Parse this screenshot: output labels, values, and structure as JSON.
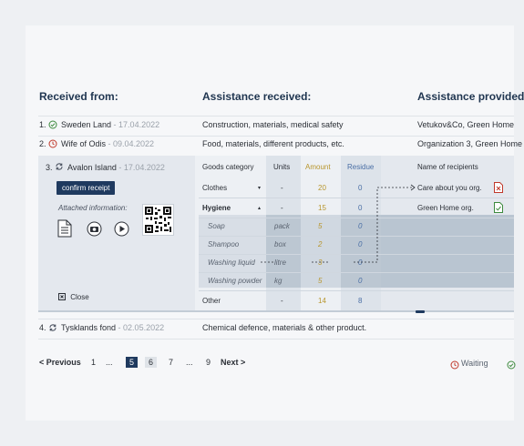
{
  "headers": {
    "received_from": "Received from:",
    "assistance_received": "Assistance received:",
    "assistance_provided": "Assistance provided"
  },
  "rows": [
    {
      "num": "1.",
      "name": "Sweden Land",
      "sep": " - ",
      "date": "17.04.2022",
      "assist": "Construction, materials, medical safety",
      "provided": "Vetukov&Co, Green Home",
      "status": "ok"
    },
    {
      "num": "2.",
      "name": "Wife of Odis",
      "sep": " - ",
      "date": "09.04.2022",
      "assist": "Food, materials, different products, etc.",
      "provided": "Organization 3, Green Home",
      "status": "waiting"
    },
    {
      "num": "3.",
      "name": "Avalon Island",
      "sep": " - ",
      "date": "17.04.2022",
      "status": "sync"
    },
    {
      "num": "4.",
      "name": "Tysklands fond",
      "sep": " - ",
      "date": "02.05.2022",
      "assist": "Chemical defence, materials & other product.",
      "status": "sync"
    }
  ],
  "expanded": {
    "confirm_label": "confirm receipt",
    "attached_label": "Attached information:",
    "close_label": "Close",
    "columns": {
      "category": "Goods category",
      "units": "Units",
      "amount": "Amount",
      "residue": "Residue",
      "recipients": "Name of recipients"
    },
    "goods": [
      {
        "category": "Clothes",
        "units": "-",
        "amount": "20",
        "residue": "0",
        "arrow": "▾"
      },
      {
        "category": "Hygiene",
        "units": "-",
        "amount": "15",
        "residue": "0",
        "arrow": "▴"
      },
      {
        "category": "Soap",
        "units": "pack",
        "amount": "5",
        "residue": "0"
      },
      {
        "category": "Shampoo",
        "units": "box",
        "amount": "2",
        "residue": "0"
      },
      {
        "category": "Washing liquid",
        "units": "litre",
        "amount": "3",
        "residue": "0"
      },
      {
        "category": "Washing powder",
        "units": "kg",
        "amount": "5",
        "residue": "0"
      },
      {
        "category": "Other",
        "units": "-",
        "amount": "14",
        "residue": "8"
      }
    ],
    "recipients": [
      {
        "name": "Care about you org."
      },
      {
        "name": "Green Home org."
      }
    ]
  },
  "pagination": {
    "prev": "< Previous",
    "pages": [
      "1",
      "...",
      "5",
      "6",
      "7",
      "...",
      "9"
    ],
    "next": "Next >",
    "active": "5"
  },
  "legend": {
    "waiting": "Waiting"
  },
  "colors": {
    "navy": "#1f3a5f",
    "amount": "#b8962e",
    "residue": "#4a6fa5",
    "ok": "#3d8a3e",
    "waiting": "#c0392b"
  }
}
